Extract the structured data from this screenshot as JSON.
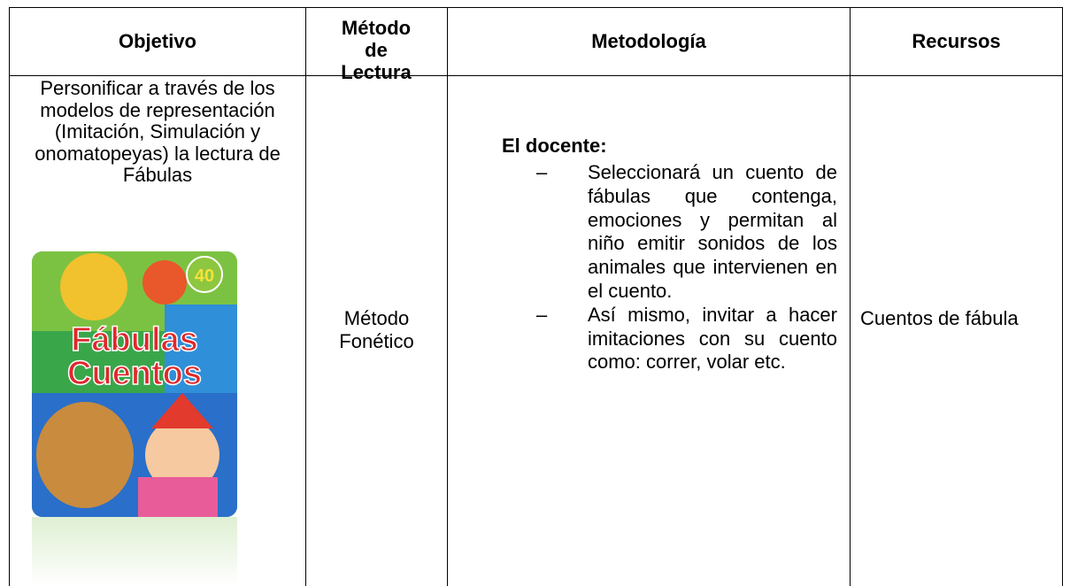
{
  "table": {
    "headers": [
      "Objetivo",
      "Método de Lectura",
      "Metodología",
      "Recursos"
    ],
    "rows": [
      {
        "objective": "Personificar a través de los modelos de representación (Imitación, Simulación y onomatopeyas) la lectura de Fábulas",
        "method": "Método Fonético",
        "methodology": {
          "heading": "El docente:",
          "items": [
            "Seleccionará un cuento de fábulas que contenga, emociones y permitan al niño emitir sonidos de los animales que intervienen en el cuento.",
            "Así mismo, invitar a hacer imitaciones con su cuento como: correr, volar etc."
          ]
        },
        "resources": "Cuentos de fábula"
      }
    ]
  },
  "cover": {
    "badge": "40",
    "title_lines": [
      "Fábulas",
      "Cuentos"
    ]
  }
}
